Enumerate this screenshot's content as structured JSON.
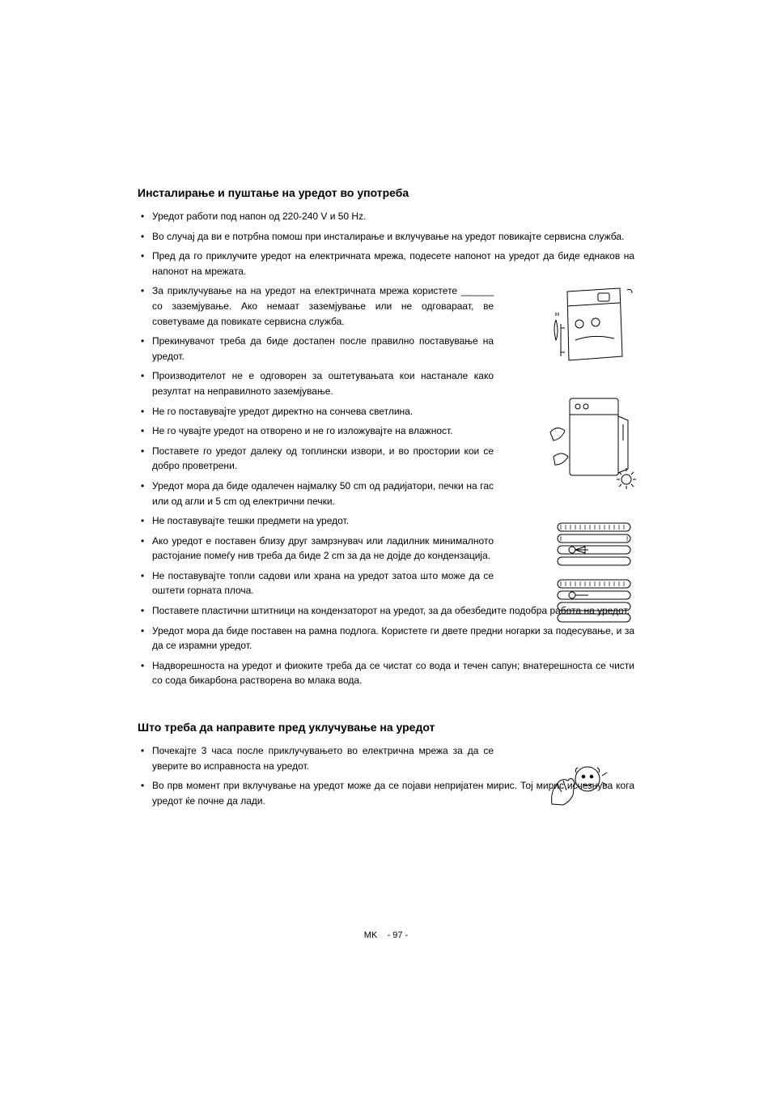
{
  "section1": {
    "title": "Инсталирање и пуштање на уредот во употреба",
    "items": [
      "Уредот работи под напон од 220-240 V и 50 Hz.",
      "Во случај да ви е потрбна помош при инсталирање и вклучување на уредот повикајте сервисна служба.",
      "Пред да го приклучите уредот на електричната мрежа, подесете напонот на уредот да биде еднаков на напонот на мрежата.",
      "За приклучување на на уредот на електричната мрежа користете ______ со заземјување. Ако немаат заземјување или не одговараат, ве советуваме да повикате сервисна служба.",
      "Прекинувачот треба да биде достапен после правилно поставување на уредот.",
      "Производителот не е одговорен за оштетувањата кои настанале како резултат на неправилното заземјување.",
      "Не го поставувајте уредот директно на сончева светлина.",
      "Не го чувајте уредот на отворено и не го изложувајте на влажност.",
      "Поставете го уредот далеку од топлински извори, и во простории кои се добро проветрени.",
      "Уредот мора да биде одалечен најмалку 50 cm од радијатори, печки на гас или од агли и 5 cm од електрични печки.",
      "Не поставувајте тешки предмети на уредот.",
      "Ако уредот е поставен близу друг замрзнувач или ладилник минималното растојание помеѓу нив треба да биде 2 cm за да не дојде до кондензација.",
      "Не поставувајте топли садови или храна на уредот затоа што може да се оштети горната плоча.",
      "Поставете пластични штитници на кондензаторот на уредот, за да обезбедите подобра работа на уредот.",
      "Уредот мора да биде поставен на рамна подлога. Користете ги двете предни ногарки за подесување, и за да се израмни уредот.",
      "Надворешноста на уредот и фиоките треба да се чистат со вода и течен сапун; внатерешноста се чисти со сода бикарбона растворена во млака вода."
    ],
    "narrowStart": 3,
    "narrowEnd": 12
  },
  "section2": {
    "title": "Што треба да направите пред уклучување на уредот",
    "items": [
      "Почекајте 3 часа после приклучувањето во електрична мрежа за да се уверите во исправноста на уредот.",
      "Во прв момент при вклучување на уредот може да се појави непријатен мирис. Тој мирис исчезнува кога уредот ќе почне да лади."
    ]
  },
  "footer": {
    "lang": "MK",
    "page": "- 97 -"
  },
  "style": {
    "text_color": "#000000",
    "bg_color": "#ffffff",
    "title_fontsize": 14,
    "body_fontsize": 12,
    "footer_fontsize": 11,
    "line_height": 1.55
  },
  "illustrations": [
    {
      "name": "plug-fridge-icon",
      "pos": "il1"
    },
    {
      "name": "fridge-sun-icon",
      "pos": "il2"
    },
    {
      "name": "radiator-spacing-icon",
      "pos": "il3"
    },
    {
      "name": "wait-clock-icon",
      "pos": "il4"
    }
  ]
}
